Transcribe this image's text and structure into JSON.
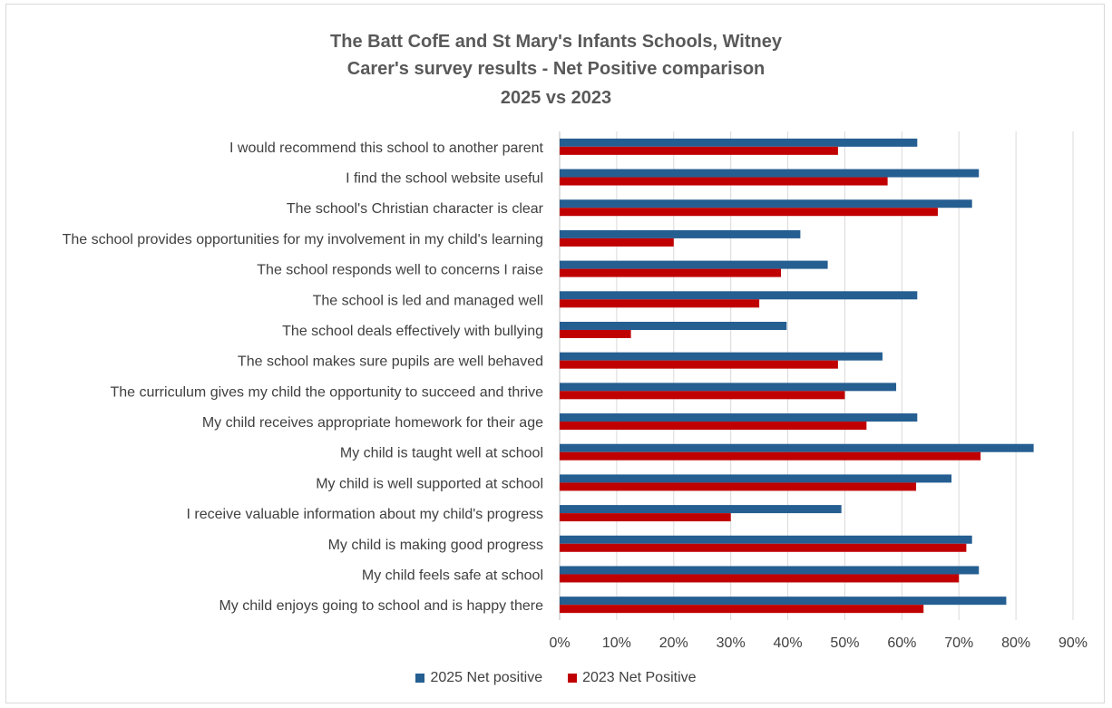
{
  "colors": {
    "series_2025": "#255e91",
    "series_2023": "#c00000",
    "grid": "#d9d9d9",
    "label_text": "#404040",
    "title_text": "#595959"
  },
  "chart_data": {
    "type": "bar",
    "orientation": "horizontal",
    "title_lines": [
      "The Batt CofE and St Mary's  Infants Schools, Witney",
      "Carer's survey results - Net Positive comparison",
      "2025 vs 2023"
    ],
    "categories": [
      "I would recommend this school to another parent",
      "I find the school website useful",
      "The school's Christian character is clear",
      "The school provides opportunities for my involvement in my child's learning",
      "The school responds well to concerns I raise",
      "The school is led and managed well",
      "The school deals effectively with bullying",
      "The school makes sure pupils are well behaved",
      "The curriculum gives my child the opportunity to succeed and thrive",
      "My child receives appropriate homework for their age",
      "My child is taught well at school",
      "My child is well supported at school",
      "I receive valuable information about my child's progress",
      "My child is making good progress",
      "My child feels safe at school",
      "My child enjoys going to school and is happy there"
    ],
    "series": [
      {
        "name": "2025 Net positive",
        "values": [
          62.7,
          73.5,
          72.3,
          42.2,
          47.0,
          62.7,
          39.8,
          56.6,
          59.0,
          62.7,
          83.1,
          68.7,
          49.4,
          72.3,
          73.5,
          78.3
        ]
      },
      {
        "name": "2023 Net Positive",
        "values": [
          48.8,
          57.5,
          66.3,
          20.0,
          38.8,
          35.0,
          12.5,
          48.8,
          50.0,
          53.8,
          73.8,
          62.5,
          30.0,
          71.3,
          70.0,
          63.8
        ]
      }
    ],
    "x_ticks": [
      "0%",
      "10%",
      "20%",
      "30%",
      "40%",
      "50%",
      "60%",
      "70%",
      "80%",
      "90%"
    ],
    "xlim": [
      0,
      90
    ],
    "grid": true,
    "legend_position": "bottom"
  }
}
